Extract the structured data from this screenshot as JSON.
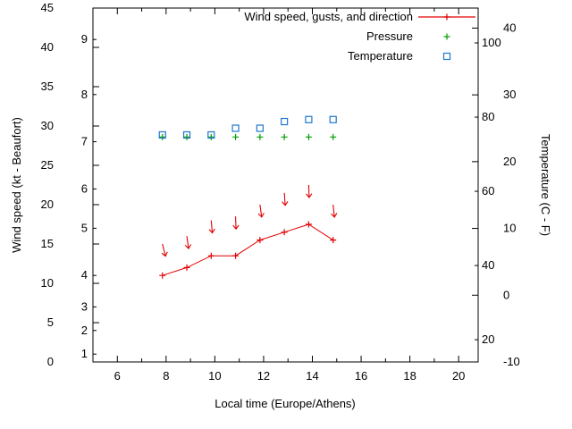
{
  "chart_data": {
    "type": "line",
    "title": "",
    "xlabel": "Local time (Europe/Athens)",
    "ylabel_left": "Wind speed (kt - Beaufort)",
    "ylabel_right": "Temperature (C - F)",
    "legend": {
      "position": "top-right-inside",
      "entries": [
        {
          "label": "Wind speed, gusts, and direction",
          "marker": "line-plus",
          "color": "#e00000"
        },
        {
          "label": "Pressure",
          "marker": "plus",
          "color": "#00a000"
        },
        {
          "label": "Temperature",
          "marker": "open-square",
          "color": "#1f77d0"
        }
      ]
    },
    "axes": {
      "x_range": [
        5,
        20.8
      ],
      "x_major_ticks": [
        6,
        8,
        10,
        12,
        14,
        16,
        18,
        20
      ],
      "x_minor_ticks": [
        7,
        9,
        11,
        13,
        15,
        17,
        19
      ],
      "y_left_range_kt": [
        0,
        45
      ],
      "y_left_ticks_kt": [
        0,
        5,
        10,
        15,
        20,
        25,
        30,
        35,
        40,
        45
      ],
      "beaufort_labels": [
        {
          "label": "1",
          "kt": 1
        },
        {
          "label": "2",
          "kt": 4
        },
        {
          "label": "3",
          "kt": 7
        },
        {
          "label": "4",
          "kt": 11
        },
        {
          "label": "5",
          "kt": 17
        },
        {
          "label": "6",
          "kt": 22
        },
        {
          "label": "7",
          "kt": 28
        },
        {
          "label": "8",
          "kt": 34
        },
        {
          "label": "9",
          "kt": 41
        }
      ],
      "y_right_range_c": [
        -10,
        43
      ],
      "y_right_ticks_c": [
        -10,
        0,
        10,
        20,
        30,
        40
      ],
      "fahrenheit_labels": [
        20,
        40,
        60,
        80,
        100
      ],
      "grid": false
    },
    "x_hours": [
      7.85,
      8.85,
      9.85,
      10.85,
      11.85,
      12.85,
      13.85,
      14.85
    ],
    "series": {
      "wind_speed_kt": [
        11,
        12,
        13.5,
        13.5,
        15.5,
        16.5,
        17.5,
        15.5
      ],
      "wind_gust_kt": [
        15,
        16,
        18,
        18.5,
        20,
        21.5,
        22.5,
        20
      ],
      "wind_dir_tilt_deg": [
        -14,
        -8,
        -5,
        -2,
        -8,
        -4,
        -2,
        -6
      ],
      "pressure_plot_kt": [
        28.6,
        28.6,
        28.6,
        28.6,
        28.6,
        28.6,
        28.6,
        28.6
      ],
      "temperature_c": [
        24,
        24,
        24,
        25,
        25,
        26,
        26.3,
        26.3
      ]
    },
    "colors": {
      "wind": "#e00000",
      "pressure": "#00a000",
      "temperature": "#1f77d0",
      "axis": "#000000",
      "background": "#ffffff"
    }
  }
}
